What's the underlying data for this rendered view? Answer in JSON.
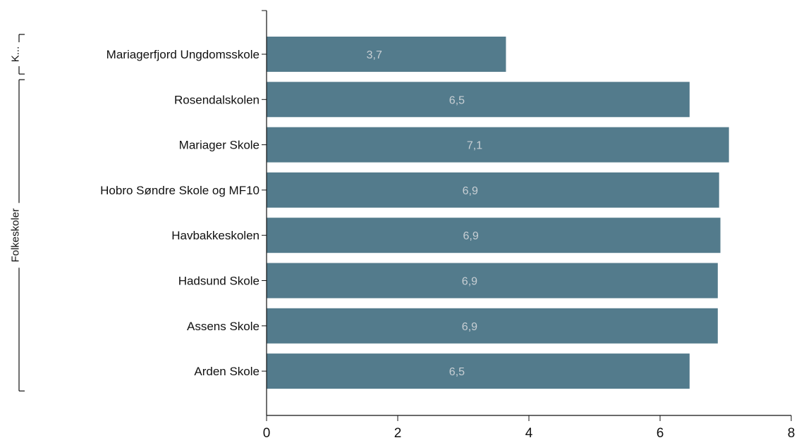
{
  "chart_data": {
    "type": "bar",
    "orientation": "horizontal",
    "categories": [
      "Mariagerfjord Ungdomsskole",
      "Rosendalskolen",
      "Mariager Skole",
      "Hobro Søndre Skole og MF10",
      "Havbakkeskolen",
      "Hadsund Skole",
      "Assens Skole",
      "Arden Skole"
    ],
    "values": [
      3.65,
      6.45,
      7.05,
      6.9,
      6.92,
      6.88,
      6.88,
      6.45
    ],
    "data_labels": [
      "3,7",
      "6,5",
      "7,1",
      "6,9",
      "6,9",
      "6,9",
      "6,9",
      "6,5"
    ],
    "groups": [
      {
        "label": "K...",
        "categories": [
          "Mariagerfjord Ungdomsskole"
        ]
      },
      {
        "label": "Folkeskoler",
        "categories": [
          "Rosendalskolen",
          "Mariager Skole",
          "Hobro Søndre Skole og MF10",
          "Havbakkeskolen",
          "Hadsund Skole",
          "Assens Skole",
          "Arden Skole"
        ]
      }
    ],
    "xlim": [
      0,
      8
    ],
    "xticks": [
      "0",
      "2",
      "4",
      "6",
      "8"
    ],
    "title": "",
    "xlabel": "",
    "ylabel": "",
    "grid": false,
    "colors": {
      "bar": "#537b8c",
      "bar_label": "#c8cfd4",
      "axis": "#111111"
    }
  }
}
